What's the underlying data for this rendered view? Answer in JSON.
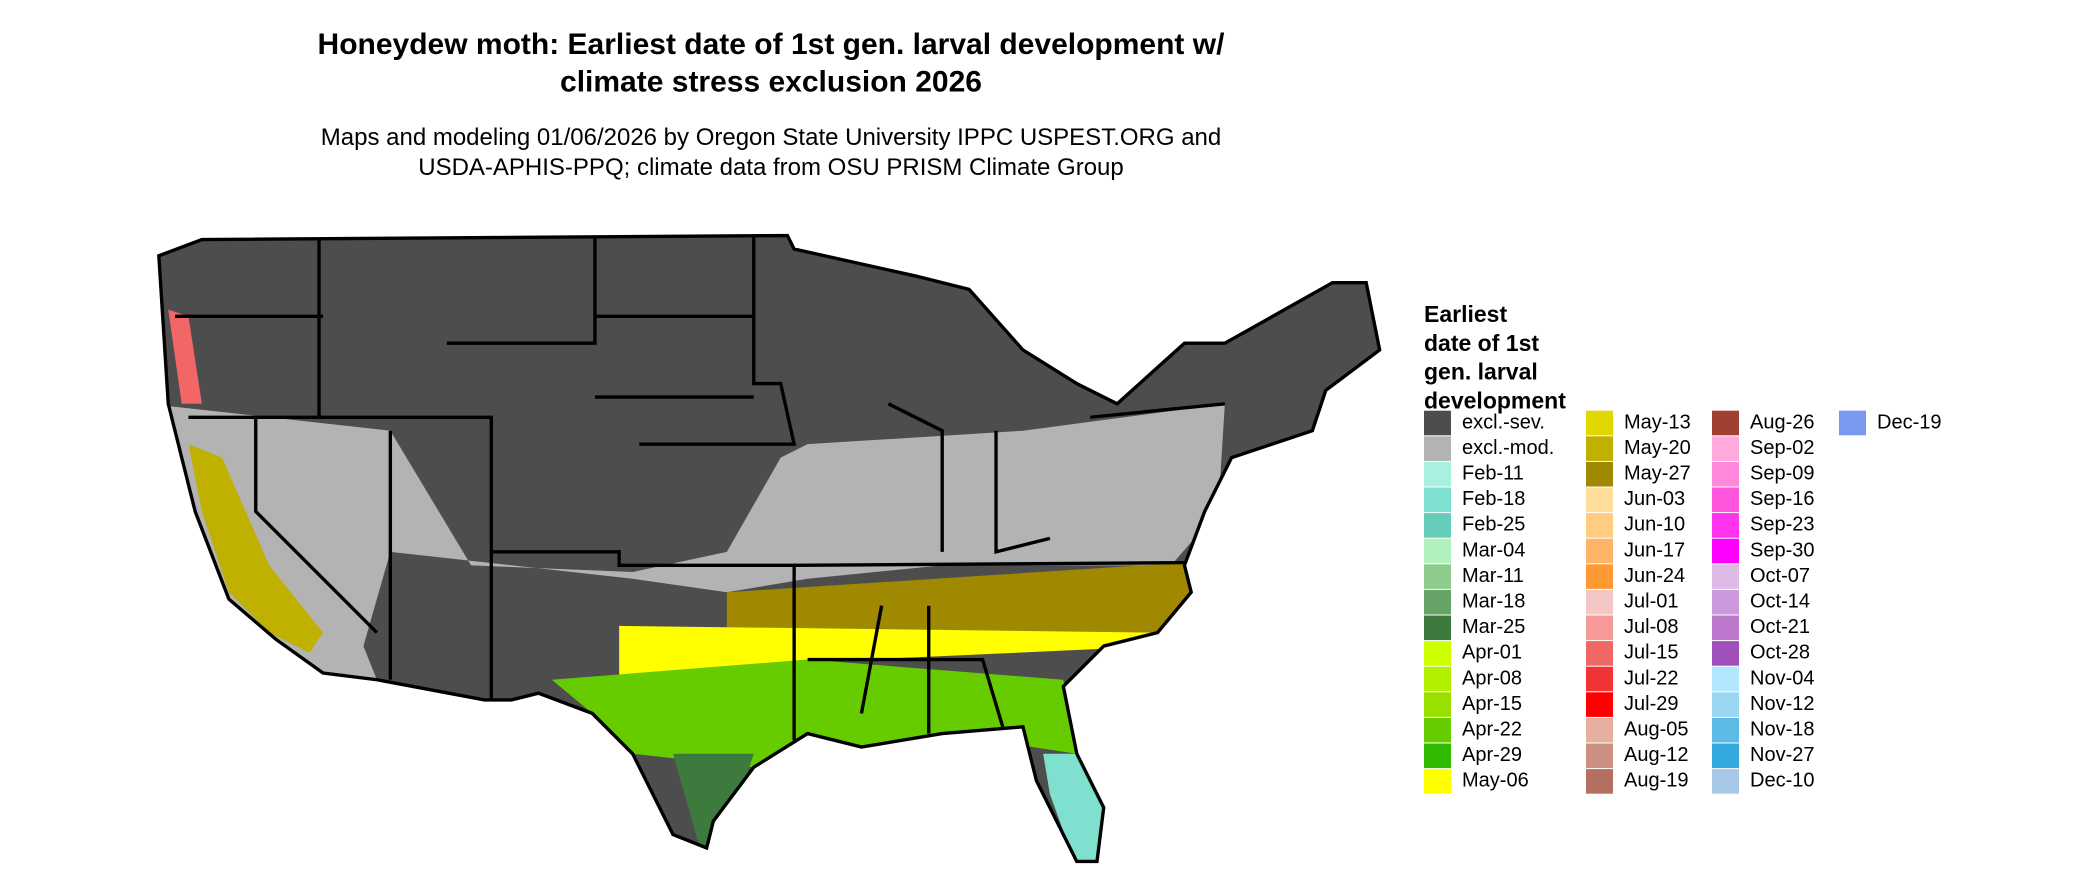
{
  "title": "Honeydew moth: Earliest date of 1st gen. larval development w/ climate stress exclusion 2026",
  "subtitle": "Maps and modeling 01/06/2026 by Oregon State University IPPC USPEST.ORG and USDA-APHIS-PPQ; climate data from OSU PRISM Climate Group",
  "legend": {
    "title": "Earliest date of 1st gen. larval development",
    "items": [
      {
        "label": "excl.-sev.",
        "color": "#4d4d4d"
      },
      {
        "label": "excl.-mod.",
        "color": "#b3b3b3"
      },
      {
        "label": "Feb-11",
        "color": "#a8f0e0"
      },
      {
        "label": "Feb-18",
        "color": "#80e0d0"
      },
      {
        "label": "Feb-25",
        "color": "#66cdbb"
      },
      {
        "label": "Mar-04",
        "color": "#b3f0c0"
      },
      {
        "label": "Mar-11",
        "color": "#8dcc8d"
      },
      {
        "label": "Mar-18",
        "color": "#66a366"
      },
      {
        "label": "Mar-25",
        "color": "#3d7a3d"
      },
      {
        "label": "Apr-01",
        "color": "#ccff00"
      },
      {
        "label": "Apr-08",
        "color": "#b3f000"
      },
      {
        "label": "Apr-15",
        "color": "#99e000"
      },
      {
        "label": "Apr-22",
        "color": "#66cc00"
      },
      {
        "label": "Apr-29",
        "color": "#33bb00"
      },
      {
        "label": "May-06",
        "color": "#ffff00"
      },
      {
        "label": "May-13",
        "color": "#e0d800"
      },
      {
        "label": "May-20",
        "color": "#c0b000"
      },
      {
        "label": "May-27",
        "color": "#a08800"
      },
      {
        "label": "Jun-03",
        "color": "#ffdd99"
      },
      {
        "label": "Jun-10",
        "color": "#ffcc80"
      },
      {
        "label": "Jun-17",
        "color": "#ffb366"
      },
      {
        "label": "Jun-24",
        "color": "#ff9933"
      },
      {
        "label": "Jul-01",
        "color": "#f5c6c6"
      },
      {
        "label": "Jul-08",
        "color": "#f59999"
      },
      {
        "label": "Jul-15",
        "color": "#f26666"
      },
      {
        "label": "Jul-22",
        "color": "#f23333"
      },
      {
        "label": "Jul-29",
        "color": "#ff0000"
      },
      {
        "label": "Aug-05",
        "color": "#e6b0a0"
      },
      {
        "label": "Aug-12",
        "color": "#cc9080"
      },
      {
        "label": "Aug-19",
        "color": "#b37060"
      },
      {
        "label": "Aug-26",
        "color": "#a04030"
      },
      {
        "label": "Sep-02",
        "color": "#ffaadd"
      },
      {
        "label": "Sep-09",
        "color": "#ff88dd"
      },
      {
        "label": "Sep-16",
        "color": "#ff55dd"
      },
      {
        "label": "Sep-23",
        "color": "#ff33ee"
      },
      {
        "label": "Sep-30",
        "color": "#ff00ff"
      },
      {
        "label": "Oct-07",
        "color": "#ddbbe6"
      },
      {
        "label": "Oct-14",
        "color": "#cc99dd"
      },
      {
        "label": "Oct-21",
        "color": "#bb77cc"
      },
      {
        "label": "Oct-28",
        "color": "#a050bb"
      },
      {
        "label": "Nov-04",
        "color": "#b3e6ff"
      },
      {
        "label": "Nov-12",
        "color": "#99d6f0"
      },
      {
        "label": "Nov-18",
        "color": "#5cbbe6"
      },
      {
        "label": "Nov-27",
        "color": "#33a8dd"
      },
      {
        "label": "Dec-10",
        "color": "#a8c8e8"
      },
      {
        "label": "Dec-19",
        "color": "#7799ee"
      }
    ]
  }
}
